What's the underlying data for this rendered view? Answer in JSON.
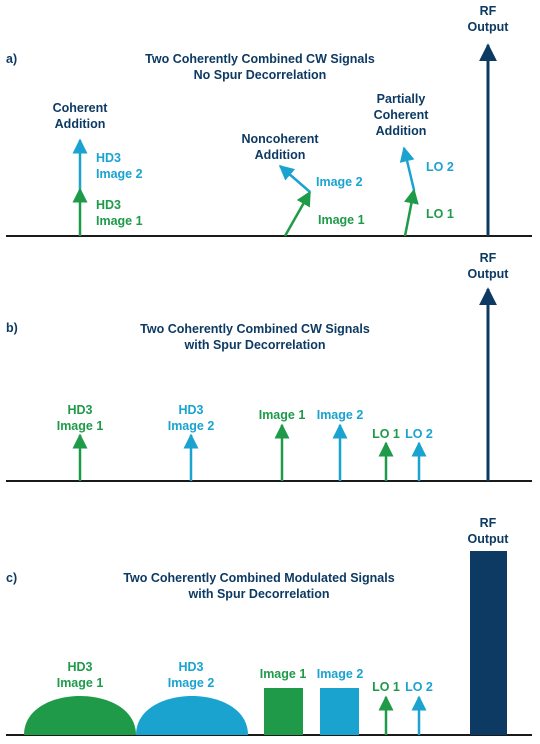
{
  "colors": {
    "navy": "#0d3a63",
    "green": "#1f9a49",
    "blue": "#1aa3cf",
    "axis": "#1a1a1a"
  },
  "panels": [
    {
      "id": "a",
      "label": "a)",
      "title_line1": "Two Coherently Combined CW Signals",
      "title_line2": "No Spur Decorrelation",
      "rf": {
        "line1": "RF",
        "line2": "Output"
      },
      "coherent": {
        "line1": "Coherent",
        "line2": "Addition"
      },
      "hd3_image2": {
        "line1": "HD3",
        "line2": "Image 2"
      },
      "hd3_image1": {
        "line1": "HD3",
        "line2": "Image 1"
      },
      "noncoherent": {
        "line1": "Noncoherent",
        "line2": "Addition"
      },
      "image2": "Image 2",
      "image1": "Image 1",
      "partial": {
        "line1": "Partially",
        "line2": "Coherent",
        "line3": "Addition"
      },
      "lo2": "LO 2",
      "lo1": "LO 1"
    },
    {
      "id": "b",
      "label": "b)",
      "title_line1": "Two Coherently Combined CW Signals",
      "title_line2": "with Spur Decorrelation",
      "rf": {
        "line1": "RF",
        "line2": "Output"
      },
      "hd3_image1": {
        "line1": "HD3",
        "line2": "Image 1"
      },
      "hd3_image2": {
        "line1": "HD3",
        "line2": "Image 2"
      },
      "image1": "Image 1",
      "image2": "Image 2",
      "lo1": "LO 1",
      "lo2": "LO 2"
    },
    {
      "id": "c",
      "label": "c)",
      "title_line1": "Two Coherently Combined Modulated Signals",
      "title_line2": "with Spur Decorrelation",
      "rf": {
        "line1": "RF",
        "line2": "Output"
      },
      "hd3_image1": {
        "line1": "HD3",
        "line2": "Image 1"
      },
      "hd3_image2": {
        "line1": "HD3",
        "line2": "Image 2"
      },
      "image1": "Image 1",
      "image2": "Image 2",
      "lo1": "LO 1",
      "lo2": "LO 2"
    }
  ]
}
